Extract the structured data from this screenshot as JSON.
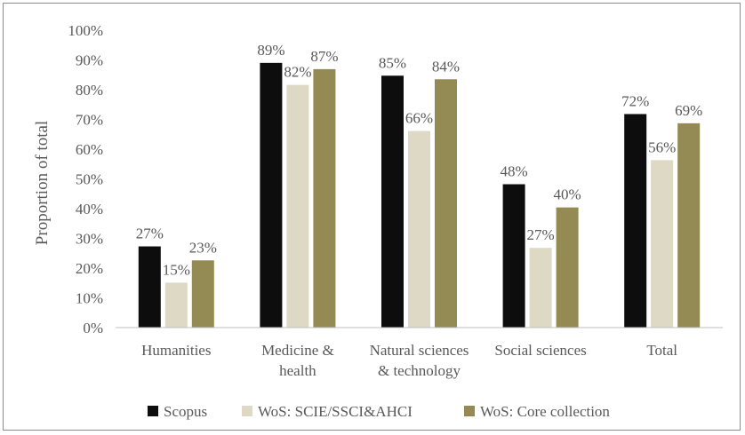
{
  "chart_data": {
    "type": "bar",
    "title": "",
    "xlabel": "",
    "ylabel": "Proportion of total",
    "ylim": [
      0,
      100
    ],
    "yticks": [
      "0%",
      "10%",
      "20%",
      "30%",
      "40%",
      "50%",
      "60%",
      "70%",
      "80%",
      "90%",
      "100%"
    ],
    "grid": false,
    "legend_position": "bottom",
    "categories": [
      [
        "Humanities"
      ],
      [
        "Medicine &",
        "health"
      ],
      [
        "Natural sciences",
        "& technology"
      ],
      [
        "Social sciences"
      ],
      [
        "Total"
      ]
    ],
    "series": [
      {
        "name": "Scopus",
        "color": "#0d0d0d",
        "values": [
          27,
          89,
          85,
          48,
          72
        ],
        "labels": [
          "27%",
          "89%",
          "85%",
          "48%",
          "72%"
        ],
        "value_precise": [
          27.3,
          89.0,
          84.7,
          48.2,
          71.8
        ]
      },
      {
        "name": "WoS: SCIE/SSCI&AHCI",
        "color": "#ddd9c4",
        "values": [
          15,
          82,
          66,
          27,
          56
        ],
        "labels": [
          "15%",
          "82%",
          "66%",
          "27%",
          "56%"
        ],
        "value_precise": [
          15.1,
          81.6,
          66.1,
          26.8,
          56.3
        ]
      },
      {
        "name": "WoS: Core collection",
        "color": "#948a54",
        "values": [
          23,
          87,
          84,
          40,
          69
        ],
        "labels": [
          "23%",
          "87%",
          "84%",
          "40%",
          "69%"
        ],
        "value_precise": [
          22.6,
          86.9,
          83.5,
          40.4,
          68.7
        ]
      }
    ]
  }
}
